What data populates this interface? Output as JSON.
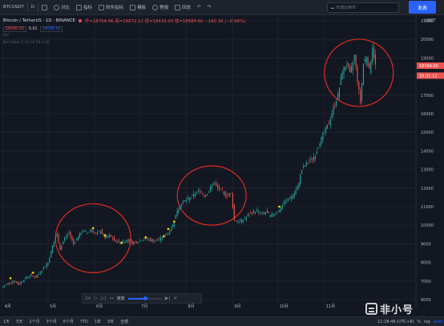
{
  "toolbar": {
    "symbol": "BTCUSDT",
    "interval": "D",
    "compare_label": "对比",
    "indicators_label": "指标",
    "financials_label": "财务指标",
    "templates_label": "模板",
    "alert_label": "警报",
    "replay_label": "回放",
    "search_label": "市场比特币",
    "publish_label": "发表"
  },
  "legend": {
    "title": "Bitcoin / TetherUS · 1D · BINANCE",
    "ohlc": "开=18764.96 高=18972.12 低=18433.00 收=18584.60 −180.36 (−0.96%)",
    "sell_price": "18580.50",
    "spread": "0.01",
    "buy_price": "18586.51",
    "indicator1": "Vol",
    "indicator2": "Bar Hiker 2 15 n1 50 1.00"
  },
  "colors": {
    "background": "#131722",
    "up": "#26a69a",
    "down": "#ef5350",
    "grid": "#1e222d",
    "circle": "#e02b1f",
    "marker": "#ffd600"
  },
  "chart_data": {
    "type": "candlestick",
    "title": "Bitcoin / TetherUS · 1D · BINANCE",
    "currency_label": "USDT",
    "ylim": [
      5700,
      21300
    ],
    "y_ticks": [
      6000,
      7000,
      8000,
      9000,
      10000,
      11000,
      12000,
      13000,
      14000,
      15000,
      16000,
      17000,
      18000,
      19000,
      20000,
      21000
    ],
    "x_ticks": [
      {
        "label": "4月",
        "day": 0
      },
      {
        "label": "5月",
        "day": 30
      },
      {
        "label": "6月",
        "day": 61
      },
      {
        "label": "7月",
        "day": 91
      },
      {
        "label": "8月",
        "day": 122
      },
      {
        "label": "9月",
        "day": 153
      },
      {
        "label": "10月",
        "day": 183
      },
      {
        "label": "11月",
        "day": 214
      }
    ],
    "xlim": [
      -2,
      275
    ],
    "grid": true,
    "price_labels": [
      {
        "value": 18584.6,
        "text": "18584.60"
      },
      {
        "value": 18350,
        "text": "20:31:12"
      }
    ],
    "anchors": [
      [
        0,
        6700
      ],
      [
        4,
        6900
      ],
      [
        8,
        7000
      ],
      [
        10,
        6800
      ],
      [
        14,
        7100
      ],
      [
        18,
        7300
      ],
      [
        22,
        7200
      ],
      [
        26,
        7600
      ],
      [
        30,
        8000
      ],
      [
        33,
        8900
      ],
      [
        36,
        9500
      ],
      [
        38,
        8700
      ],
      [
        41,
        9300
      ],
      [
        44,
        9600
      ],
      [
        47,
        9000
      ],
      [
        50,
        9400
      ],
      [
        53,
        9700
      ],
      [
        56,
        9600
      ],
      [
        59,
        9800
      ],
      [
        62,
        9500
      ],
      [
        65,
        9700
      ],
      [
        68,
        9300
      ],
      [
        71,
        9450
      ],
      [
        74,
        9200
      ],
      [
        77,
        9100
      ],
      [
        80,
        9150
      ],
      [
        83,
        9200
      ],
      [
        86,
        9050
      ],
      [
        89,
        9100
      ],
      [
        92,
        9200
      ],
      [
        95,
        9300
      ],
      [
        98,
        9200
      ],
      [
        101,
        9150
      ],
      [
        104,
        9250
      ],
      [
        107,
        9400
      ],
      [
        110,
        9600
      ],
      [
        113,
        10000
      ],
      [
        116,
        10800
      ],
      [
        119,
        11200
      ],
      [
        122,
        11350
      ],
      [
        125,
        11500
      ],
      [
        128,
        11700
      ],
      [
        131,
        11900
      ],
      [
        134,
        11600
      ],
      [
        137,
        11800
      ],
      [
        140,
        12300
      ],
      [
        143,
        12000
      ],
      [
        146,
        11800
      ],
      [
        149,
        11600
      ],
      [
        152,
        11700
      ],
      [
        154,
        10300
      ],
      [
        157,
        10200
      ],
      [
        160,
        10300
      ],
      [
        163,
        10500
      ],
      [
        166,
        10700
      ],
      [
        169,
        10800
      ],
      [
        172,
        10600
      ],
      [
        175,
        10700
      ],
      [
        178,
        10500
      ],
      [
        181,
        10650
      ],
      [
        184,
        10800
      ],
      [
        187,
        11200
      ],
      [
        190,
        11400
      ],
      [
        193,
        11600
      ],
      [
        196,
        12000
      ],
      [
        199,
        13000
      ],
      [
        202,
        13300
      ],
      [
        205,
        13500
      ],
      [
        208,
        13800
      ],
      [
        211,
        14500
      ],
      [
        214,
        15000
      ],
      [
        217,
        15500
      ],
      [
        220,
        16300
      ],
      [
        223,
        17000
      ],
      [
        226,
        18300
      ],
      [
        229,
        18700
      ],
      [
        231,
        18100
      ],
      [
        234,
        19100
      ],
      [
        236,
        17800
      ],
      [
        238,
        16600
      ],
      [
        240,
        18700
      ],
      [
        242,
        19100
      ],
      [
        244,
        18300
      ],
      [
        246,
        19600
      ],
      [
        248,
        18600
      ]
    ],
    "markers": [
      [
        5,
        7150
      ],
      [
        20,
        7450
      ],
      [
        60,
        9850
      ],
      [
        68,
        9450
      ],
      [
        79,
        9050
      ],
      [
        95,
        9350
      ],
      [
        107,
        9400
      ],
      [
        110,
        9800
      ],
      [
        114,
        10200
      ],
      [
        184,
        11000
      ]
    ],
    "circles": [
      {
        "cx": 60,
        "cy": 9300,
        "rx": 47,
        "ry": 43
      },
      {
        "cx": 139,
        "cy": 11600,
        "rx": 43,
        "ry": 37
      },
      {
        "cx": 237,
        "cy": 18200,
        "rx": 43,
        "ry": 42
      }
    ]
  },
  "replay": {
    "speed_label": "1x",
    "speed_text": "速度",
    "speed_value": 0.5
  },
  "bottom": {
    "periods": [
      "1天",
      "5天",
      "1个月",
      "3个月",
      "6个月",
      "YTD",
      "1年",
      "5年",
      "全部"
    ],
    "time": "11:28:48 (UTC+8)",
    "percent_label": "%",
    "log_label": "log",
    "auto_label": "auto"
  },
  "watermark": {
    "text": "非小号"
  }
}
